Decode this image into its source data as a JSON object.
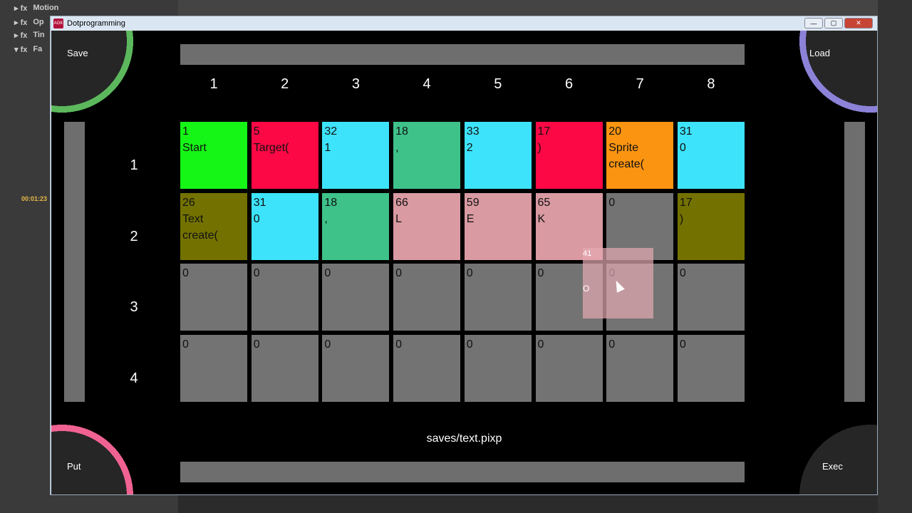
{
  "background": {
    "panel_rows": [
      "Motion",
      "Op",
      "Tin",
      "Fa"
    ],
    "timecode": "00:01:23"
  },
  "window": {
    "title": "Dotprogramming",
    "logo": "AGK",
    "controls": [
      "minimize",
      "maximize",
      "close"
    ]
  },
  "corners": {
    "save": "Save",
    "load": "Load",
    "put": "Put",
    "exec": "Exec"
  },
  "columns": [
    "1",
    "2",
    "3",
    "4",
    "5",
    "6",
    "7",
    "8"
  ],
  "rows": [
    "1",
    "2",
    "3",
    "4"
  ],
  "cells": [
    [
      {
        "num": "1",
        "text": "Start",
        "color": "#15f516"
      },
      {
        "num": "5",
        "text": "Target(",
        "color": "#fb0845"
      },
      {
        "num": "32",
        "text": "1",
        "color": "#3de3fa"
      },
      {
        "num": "18",
        "text": ",",
        "color": "#3ec28a"
      },
      {
        "num": "33",
        "text": "2",
        "color": "#3de3fa"
      },
      {
        "num": "17",
        "text": ")",
        "color": "#fb0845"
      },
      {
        "num": "20",
        "text": "Sprite\ncreate(",
        "color": "#fb9410"
      },
      {
        "num": "31",
        "text": "0",
        "color": "#3de3fa"
      }
    ],
    [
      {
        "num": "26",
        "text": "Text\ncreate(",
        "color": "#737200"
      },
      {
        "num": "31",
        "text": "0",
        "color": "#3de3fa"
      },
      {
        "num": "18",
        "text": ",",
        "color": "#3ec28a"
      },
      {
        "num": "66",
        "text": "L",
        "color": "#d99aa2"
      },
      {
        "num": "59",
        "text": "E",
        "color": "#d99aa2"
      },
      {
        "num": "65",
        "text": "K",
        "color": "#d99aa2"
      },
      {
        "num": "0",
        "text": "",
        "color": "#737373"
      },
      {
        "num": "17",
        "text": ")",
        "color": "#737200"
      }
    ],
    [
      {
        "num": "0",
        "text": "",
        "color": "#737373"
      },
      {
        "num": "0",
        "text": "",
        "color": "#737373"
      },
      {
        "num": "0",
        "text": "",
        "color": "#737373"
      },
      {
        "num": "0",
        "text": "",
        "color": "#737373"
      },
      {
        "num": "0",
        "text": "",
        "color": "#737373"
      },
      {
        "num": "0",
        "text": "",
        "color": "#737373"
      },
      {
        "num": "0",
        "text": "",
        "color": "#737373"
      },
      {
        "num": "0",
        "text": "",
        "color": "#737373"
      }
    ],
    [
      {
        "num": "0",
        "text": "",
        "color": "#737373"
      },
      {
        "num": "0",
        "text": "",
        "color": "#737373"
      },
      {
        "num": "0",
        "text": "",
        "color": "#737373"
      },
      {
        "num": "0",
        "text": "",
        "color": "#737373"
      },
      {
        "num": "0",
        "text": "",
        "color": "#737373"
      },
      {
        "num": "0",
        "text": "",
        "color": "#737373"
      },
      {
        "num": "0",
        "text": "",
        "color": "#737373"
      },
      {
        "num": "0",
        "text": "",
        "color": "#737373"
      }
    ]
  ],
  "dragged_tile": {
    "num": "41",
    "text": "O"
  },
  "filename": "saves/text.pixp"
}
